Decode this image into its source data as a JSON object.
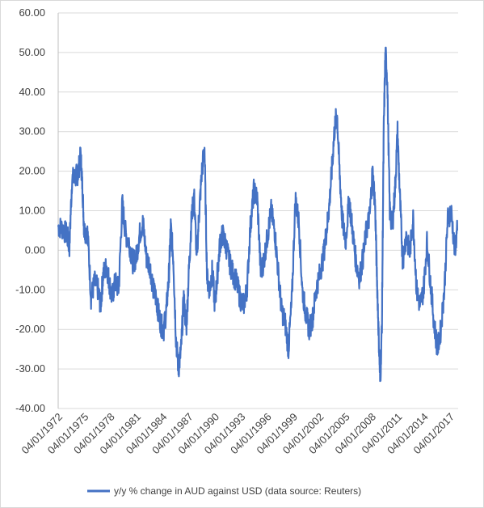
{
  "chart_data": {
    "type": "line",
    "title": "",
    "xlabel": "",
    "ylabel": "",
    "ylim": [
      -40,
      60
    ],
    "y_ticks": [
      "60.00",
      "50.00",
      "40.00",
      "30.00",
      "20.00",
      "10.00",
      "0.00",
      "-10.00",
      "-20.00",
      "-30.00",
      "-40.00"
    ],
    "x_ticks": [
      "04/01/1972",
      "04/01/1975",
      "04/01/1978",
      "04/01/1981",
      "04/01/1984",
      "04/01/1987",
      "04/01/1990",
      "04/01/1993",
      "04/01/1996",
      "04/01/1999",
      "04/01/2002",
      "04/01/2005",
      "04/01/2008",
      "04/01/2011",
      "04/01/2014",
      "04/01/2017"
    ],
    "xlim": [
      1972.0,
      2018.2
    ],
    "grid": "horizontal",
    "legend_position": "bottom",
    "series": [
      {
        "name": "y/y % change in AUD against USD (data source: Reuters)",
        "color": "#4472c4",
        "x": [
          1972.0,
          1972.5,
          1973.0,
          1973.3,
          1973.6,
          1974.0,
          1974.3,
          1974.6,
          1974.8,
          1975.0,
          1975.4,
          1975.8,
          1976.2,
          1976.6,
          1976.9,
          1977.2,
          1977.6,
          1977.9,
          1978.2,
          1978.6,
          1979.0,
          1979.4,
          1979.8,
          1980.2,
          1980.6,
          1981.0,
          1981.4,
          1981.8,
          1982.2,
          1982.6,
          1983.0,
          1983.3,
          1983.6,
          1983.9,
          1984.2,
          1984.5,
          1984.8,
          1985.0,
          1985.3,
          1985.6,
          1985.9,
          1986.2,
          1986.5,
          1986.8,
          1987.1,
          1987.4,
          1987.7,
          1988.0,
          1988.3,
          1988.6,
          1988.9,
          1989.2,
          1989.5,
          1989.8,
          1990.1,
          1990.4,
          1990.7,
          1991.0,
          1991.4,
          1991.8,
          1992.2,
          1992.6,
          1993.0,
          1993.4,
          1993.8,
          1994.2,
          1994.6,
          1995.0,
          1995.4,
          1995.8,
          1996.2,
          1996.6,
          1997.0,
          1997.4,
          1997.8,
          1998.2,
          1998.6,
          1999.0,
          1999.4,
          1999.8,
          2000.2,
          2000.6,
          2001.0,
          2001.4,
          2001.8,
          2002.2,
          2002.6,
          2003.0,
          2003.3,
          2003.6,
          2003.9,
          2004.2,
          2004.5,
          2004.8,
          2005.2,
          2005.6,
          2006.0,
          2006.4,
          2006.8,
          2007.2,
          2007.6,
          2008.0,
          2008.3,
          2008.6,
          2008.8,
          2009.0,
          2009.2,
          2009.4,
          2009.6,
          2009.8,
          2010.0,
          2010.3,
          2010.6,
          2010.9,
          2011.2,
          2011.5,
          2011.8,
          2012.2,
          2012.6,
          2013.0,
          2013.4,
          2013.8,
          2014.2,
          2014.6,
          2015.0,
          2015.4,
          2015.8,
          2016.2,
          2016.6,
          2017.0,
          2017.4,
          2017.8,
          2018.1
        ],
        "values": [
          6.0,
          5.5,
          4.0,
          1.0,
          18.0,
          18.5,
          19.5,
          24.0,
          16.0,
          5.0,
          4.5,
          -12.0,
          -8.0,
          -10.0,
          -14.0,
          -6.0,
          -4.0,
          -8.0,
          -12.0,
          -8.0,
          -10.0,
          12.0,
          4.0,
          2.0,
          -3.0,
          -2.0,
          4.0,
          7.0,
          -2.0,
          -4.0,
          -10.0,
          -12.0,
          -16.0,
          -19.0,
          -20.0,
          -15.0,
          -6.0,
          6.0,
          -2.0,
          -22.0,
          -30.0,
          -25.0,
          -12.0,
          -20.0,
          -5.0,
          8.0,
          14.0,
          -2.0,
          10.0,
          20.0,
          26.0,
          -7.0,
          -10.0,
          -5.0,
          -14.0,
          -6.0,
          2.0,
          4.0,
          1.0,
          -3.0,
          -6.0,
          -8.0,
          -12.0,
          -14.0,
          -10.0,
          6.0,
          15.0,
          13.0,
          -6.0,
          -2.0,
          4.0,
          10.0,
          5.0,
          -5.0,
          -15.0,
          -18.0,
          -25.0,
          -12.0,
          13.0,
          7.0,
          -10.0,
          -16.0,
          -20.0,
          -17.0,
          -10.0,
          -6.0,
          -2.0,
          5.0,
          11.0,
          20.0,
          30.0,
          35.0,
          20.0,
          8.0,
          2.0,
          13.0,
          5.0,
          -3.0,
          -7.0,
          -2.0,
          5.0,
          9.0,
          20.0,
          12.0,
          -5.0,
          -20.0,
          -34.0,
          -18.0,
          30.0,
          50.0,
          44.0,
          10.0,
          6.0,
          15.0,
          30.0,
          12.0,
          -3.0,
          4.0,
          -1.0,
          8.0,
          -10.0,
          -14.0,
          -10.0,
          2.0,
          -8.0,
          -18.0,
          -25.0,
          -20.0,
          -10.0,
          8.0,
          10.0,
          0.0,
          5.0
        ]
      }
    ]
  }
}
